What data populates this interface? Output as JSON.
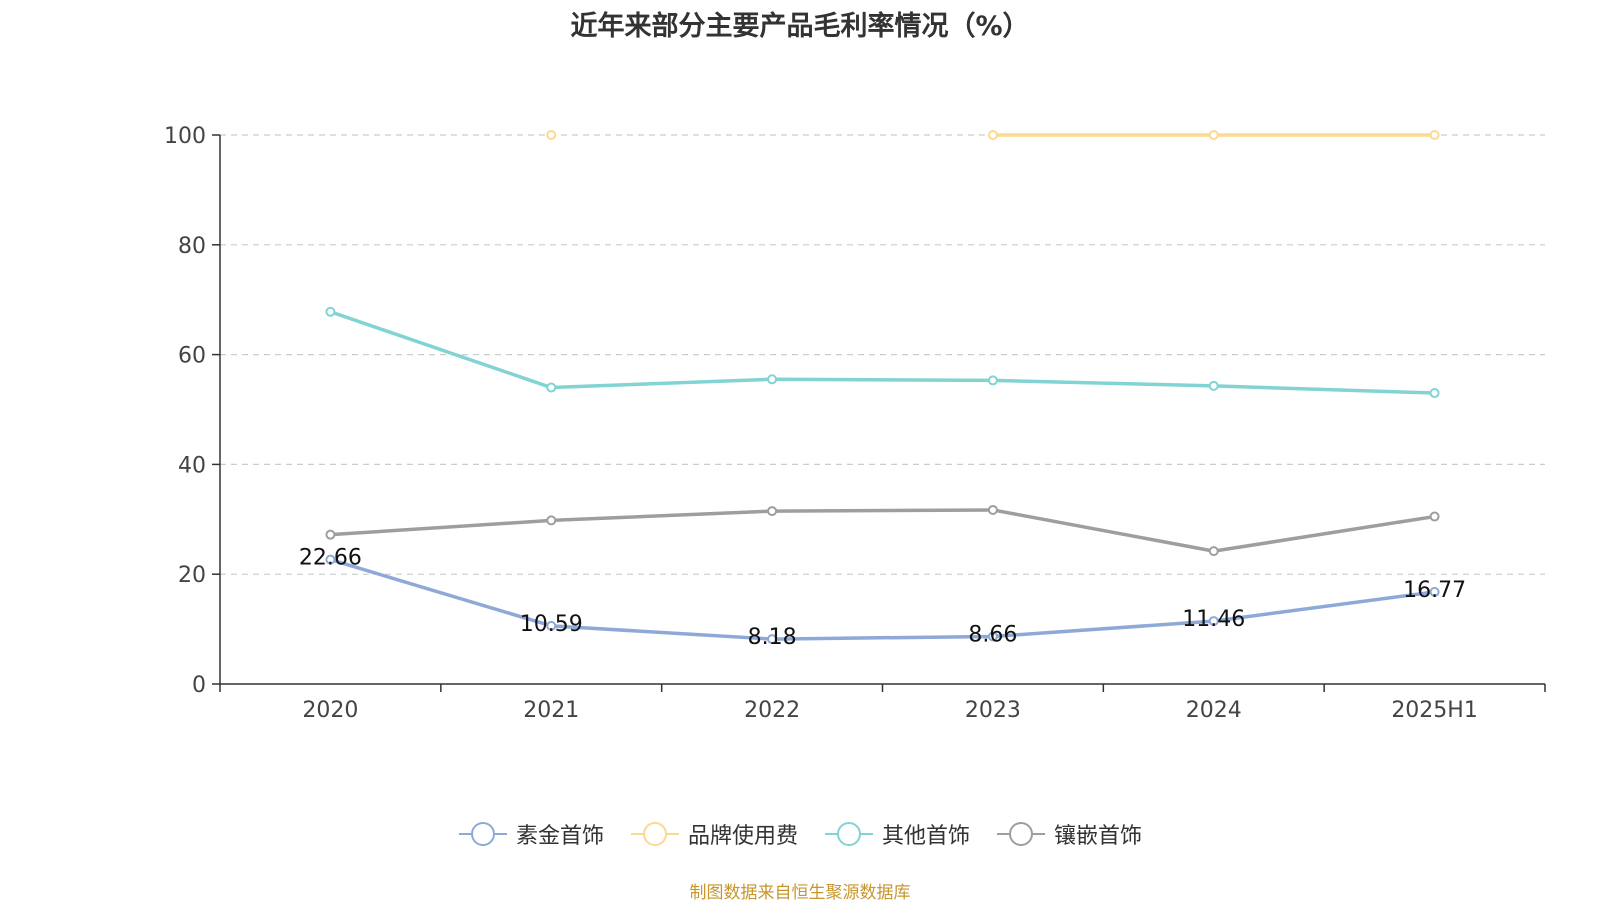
{
  "chart_data": {
    "type": "line",
    "title": "近年来部分主要产品毛利率情况（%）",
    "categories": [
      "2020",
      "2021",
      "2022",
      "2023",
      "2024",
      "2025H1"
    ],
    "ylim": [
      0,
      100
    ],
    "yticks": [
      0,
      20,
      40,
      60,
      80,
      100
    ],
    "grid": true,
    "legend_position": "bottom",
    "series": [
      {
        "name": "素金首饰",
        "color": "#8ea9d8",
        "values": [
          22.66,
          10.59,
          8.18,
          8.66,
          11.46,
          16.77
        ],
        "labels": [
          "22.66",
          "10.59",
          "8.18",
          "8.66",
          "11.46",
          "16.77"
        ],
        "show_labels": true
      },
      {
        "name": "品牌使用费",
        "color": "#fcd98f",
        "values": [
          null,
          100,
          null,
          100,
          100,
          100
        ],
        "show_labels": false
      },
      {
        "name": "其他首饰",
        "color": "#82d3d4",
        "values": [
          67.8,
          54.0,
          55.5,
          55.3,
          54.3,
          53.0
        ],
        "show_labels": false
      },
      {
        "name": "镶嵌首饰",
        "color": "#9e9e9e",
        "values": [
          27.2,
          29.8,
          31.5,
          31.7,
          24.2,
          30.5
        ],
        "show_labels": false
      }
    ]
  },
  "source_note": "制图数据来自恒生聚源数据库"
}
